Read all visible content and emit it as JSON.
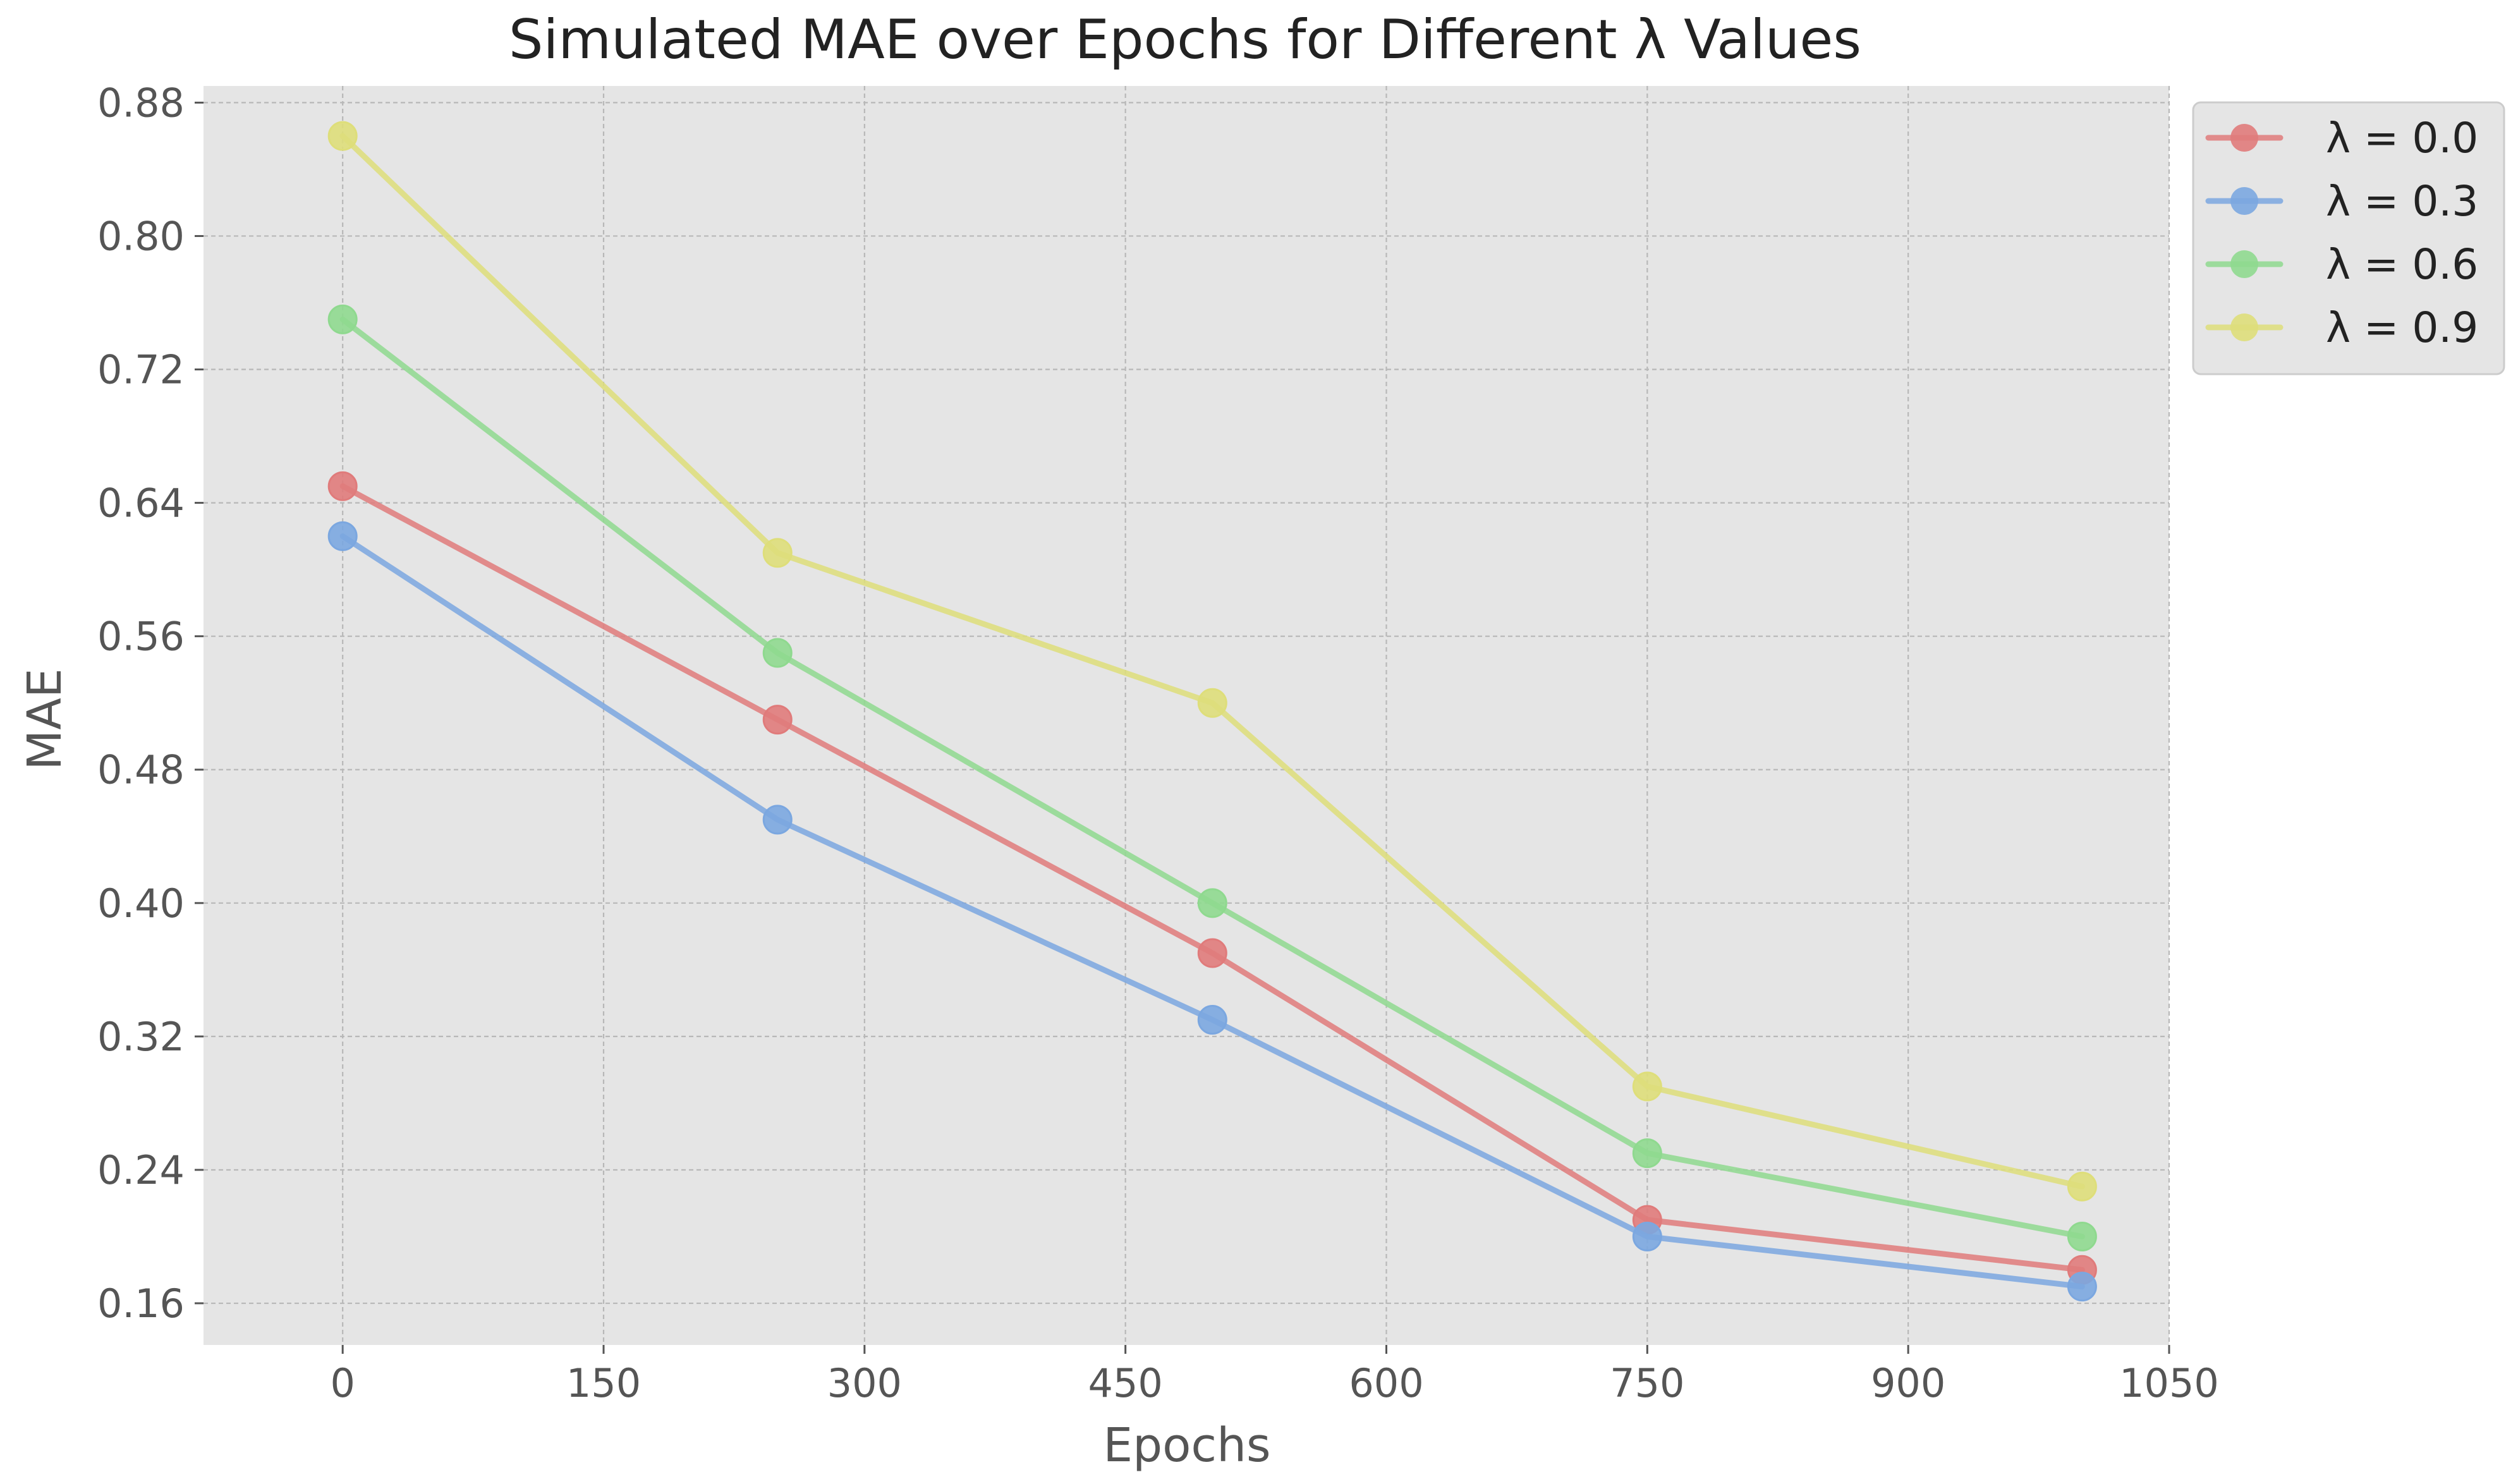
{
  "chart_data": {
    "type": "line",
    "title": "Simulated MAE over Epochs for Different λ Values",
    "xlabel": "Epochs",
    "ylabel": "MAE",
    "x": [
      0,
      250,
      500,
      750,
      1000
    ],
    "xlim": [
      -80,
      1050
    ],
    "ylim": [
      0.135,
      0.89
    ],
    "xticks": [
      0,
      150,
      300,
      450,
      600,
      750,
      900,
      1050
    ],
    "xtick_labels": [
      "0",
      "150",
      "300",
      "450",
      "600",
      "750",
      "900",
      "1050"
    ],
    "yticks": [
      0.16,
      0.24,
      0.32,
      0.4,
      0.48,
      0.56,
      0.64,
      0.72,
      0.8,
      0.88
    ],
    "ytick_labels": [
      "0.16",
      "0.24",
      "0.32",
      "0.40",
      "0.48",
      "0.56",
      "0.64",
      "0.72",
      "0.80",
      "0.88"
    ],
    "grid": true,
    "legend_position": "outside top-right",
    "series": [
      {
        "name": "λ = 0.0",
        "color": "#e07b7b",
        "values": [
          0.65,
          0.51,
          0.37,
          0.21,
          0.18
        ]
      },
      {
        "name": "λ = 0.3",
        "color": "#7ba7e0",
        "values": [
          0.62,
          0.45,
          0.33,
          0.2,
          0.17
        ]
      },
      {
        "name": "λ = 0.6",
        "color": "#8fd98f",
        "values": [
          0.75,
          0.55,
          0.4,
          0.25,
          0.2
        ]
      },
      {
        "name": "λ = 0.9",
        "color": "#dede7a",
        "values": [
          0.86,
          0.61,
          0.52,
          0.29,
          0.23
        ]
      }
    ]
  }
}
